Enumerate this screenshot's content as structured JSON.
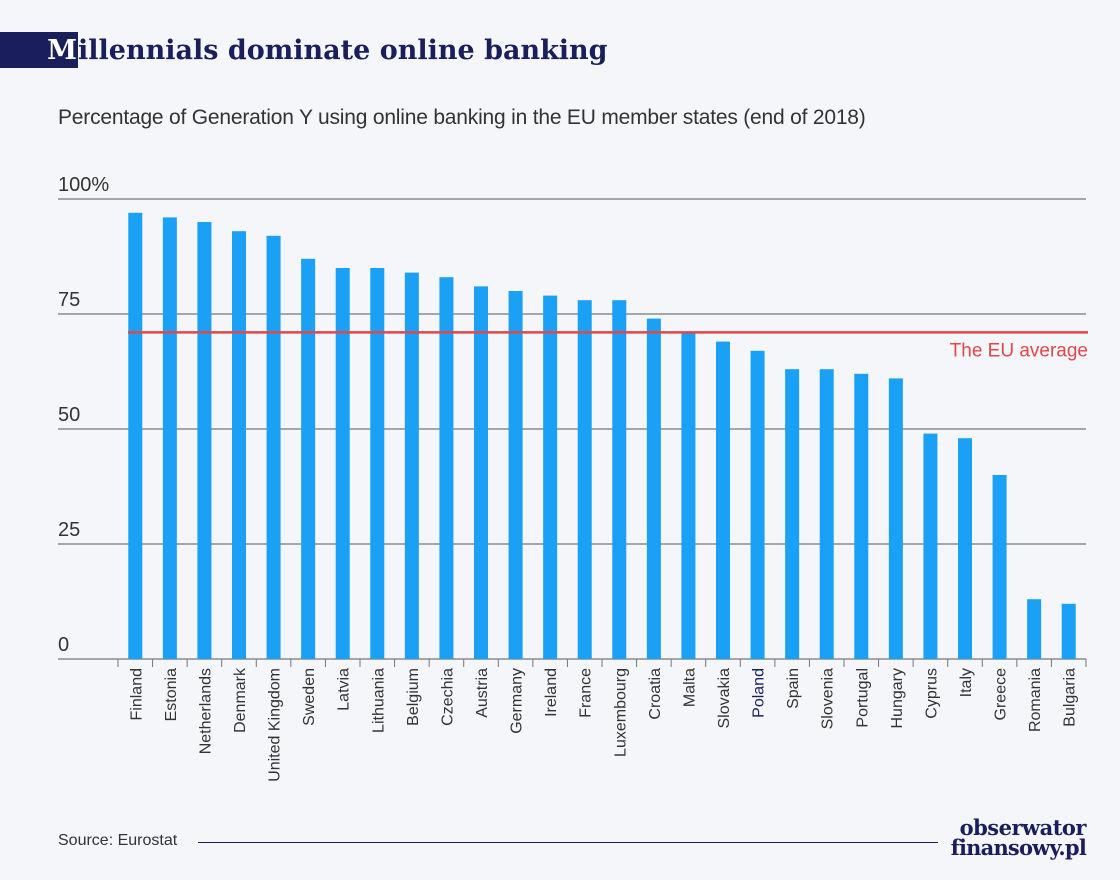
{
  "title_initial": "M",
  "title_rest": "illennials dominate online banking",
  "subtitle": "Percentage of Generation Y using online banking in the EU member states (end of 2018)",
  "source": "Source: Eurostat",
  "brand": {
    "line1": "obserwator",
    "line2": "finansowy.pl"
  },
  "colors": {
    "bar": "#1aa0f4",
    "average_line": "#e0474c",
    "title": "#1a1f5c",
    "highlight_label": "#1a1f5c",
    "grid": "#555555"
  },
  "chart_data": {
    "type": "bar",
    "title": "Millennials dominate online banking",
    "subtitle": "Percentage of Generation Y using online banking in the EU member states (end of 2018)",
    "ylabel": "",
    "xlabel": "",
    "ylim": [
      0,
      100
    ],
    "yticks": [
      0,
      25,
      50,
      75,
      100
    ],
    "ytick_labels": [
      "0",
      "25",
      "50",
      "75",
      "100%"
    ],
    "grid": true,
    "categories": [
      "Finland",
      "Estonia",
      "Netherlands",
      "Denmark",
      "United Kingdom",
      "Sweden",
      "Latvia",
      "Lithuania",
      "Belgium",
      "Czechia",
      "Austria",
      "Germany",
      "Ireland",
      "France",
      "Luxembourg",
      "Croatia",
      "Malta",
      "Slovakia",
      "Poland",
      "Spain",
      "Slovenia",
      "Portugal",
      "Hungary",
      "Cyprus",
      "Italy",
      "Greece",
      "Romania",
      "Bulgaria"
    ],
    "values": [
      97,
      96,
      95,
      93,
      92,
      87,
      85,
      85,
      84,
      83,
      81,
      80,
      79,
      78,
      78,
      74,
      71,
      69,
      67,
      63,
      63,
      62,
      61,
      49,
      48,
      40,
      13,
      12
    ],
    "highlight_category": "Poland",
    "reference_line": {
      "label": "The EU average",
      "value": 71
    }
  }
}
